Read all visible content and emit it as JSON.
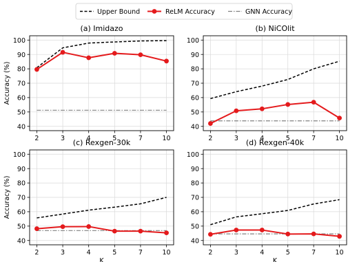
{
  "legend": {
    "items": [
      {
        "label": "Upper Bound",
        "series_key": "upper",
        "color": "#000000",
        "dash": "dashed"
      },
      {
        "label": "ReLM Accuracy",
        "series_key": "relm",
        "color": "#e41a1c",
        "dash": "solid",
        "marker": "circle"
      },
      {
        "label": "GNN Accuracy",
        "series_key": "gnn",
        "color": "#808080",
        "dash": "dashdot"
      }
    ],
    "placement": "top-center"
  },
  "shared_labels": {
    "xlabel": "K",
    "ylabel": "Accuracy (%)"
  },
  "chart_data": [
    {
      "type": "line",
      "title": "(a) Imidazo",
      "x": [
        2,
        3,
        4,
        5,
        7,
        10
      ],
      "xticks": [
        "2",
        "3",
        "4",
        "5",
        "7",
        "10"
      ],
      "ylim": [
        37,
        103
      ],
      "yticks": [
        40,
        50,
        60,
        70,
        80,
        90,
        100
      ],
      "ylabel": "Accuracy (%)",
      "xlabel": "",
      "grid": true,
      "series": [
        {
          "name": "Upper Bound",
          "key": "upper",
          "values": [
            80.8,
            94.6,
            97.9,
            98.7,
            99.4,
            99.6
          ]
        },
        {
          "name": "ReLM Accuracy",
          "key": "relm",
          "values": [
            79.6,
            91.5,
            87.7,
            90.8,
            89.8,
            85.4
          ]
        },
        {
          "name": "GNN Accuracy",
          "key": "gnn",
          "values": [
            51.2,
            51.2,
            51.2,
            51.2,
            51.2,
            51.2
          ]
        }
      ]
    },
    {
      "type": "line",
      "title": "(b) NiCOlit",
      "x": [
        2,
        3,
        4,
        5,
        7,
        10
      ],
      "xticks": [
        "2",
        "3",
        "4",
        "5",
        "7",
        "10"
      ],
      "ylim": [
        37,
        103
      ],
      "yticks": [
        40,
        50,
        60,
        70,
        80,
        90,
        100
      ],
      "ylabel": "",
      "xlabel": "",
      "grid": true,
      "series": [
        {
          "name": "Upper Bound",
          "key": "upper",
          "values": [
            59.3,
            64.1,
            68.0,
            72.6,
            80.0,
            85.3
          ]
        },
        {
          "name": "ReLM Accuracy",
          "key": "relm",
          "values": [
            42.0,
            50.8,
            52.2,
            55.2,
            56.8,
            45.8
          ]
        },
        {
          "name": "GNN Accuracy",
          "key": "gnn",
          "values": [
            43.8,
            43.8,
            43.8,
            43.8,
            43.8,
            43.8
          ]
        }
      ]
    },
    {
      "type": "line",
      "title": "(c) Rexgen-30k",
      "x": [
        2,
        3,
        4,
        5,
        7,
        10
      ],
      "xticks": [
        "2",
        "3",
        "4",
        "5",
        "7",
        "10"
      ],
      "ylim": [
        37,
        103
      ],
      "yticks": [
        40,
        50,
        60,
        70,
        80,
        90,
        100
      ],
      "ylabel": "Accuracy (%)",
      "xlabel": "K",
      "grid": true,
      "series": [
        {
          "name": "Upper Bound",
          "key": "upper",
          "values": [
            55.7,
            58.4,
            61.1,
            63.2,
            65.5,
            70.0
          ]
        },
        {
          "name": "ReLM Accuracy",
          "key": "relm",
          "values": [
            48.2,
            49.6,
            49.7,
            46.5,
            46.5,
            45.3
          ]
        },
        {
          "name": "GNN Accuracy",
          "key": "gnn",
          "values": [
            46.9,
            46.9,
            46.9,
            46.9,
            46.9,
            46.9
          ]
        }
      ]
    },
    {
      "type": "line",
      "title": "(d) Rexgen-40k",
      "x": [
        2,
        3,
        4,
        5,
        7,
        10
      ],
      "xticks": [
        "2",
        "3",
        "4",
        "5",
        "7",
        "10"
      ],
      "ylim": [
        37,
        103
      ],
      "yticks": [
        40,
        50,
        60,
        70,
        80,
        90,
        100
      ],
      "ylabel": "",
      "xlabel": "K",
      "grid": true,
      "series": [
        {
          "name": "Upper Bound",
          "key": "upper",
          "values": [
            51.0,
            56.4,
            58.6,
            60.9,
            65.4,
            68.4
          ]
        },
        {
          "name": "ReLM Accuracy",
          "key": "relm",
          "values": [
            44.3,
            47.3,
            47.3,
            44.5,
            44.6,
            42.9
          ]
        },
        {
          "name": "GNN Accuracy",
          "key": "gnn",
          "values": [
            44.6,
            44.6,
            44.6,
            44.6,
            44.6,
            44.6
          ]
        }
      ]
    }
  ]
}
